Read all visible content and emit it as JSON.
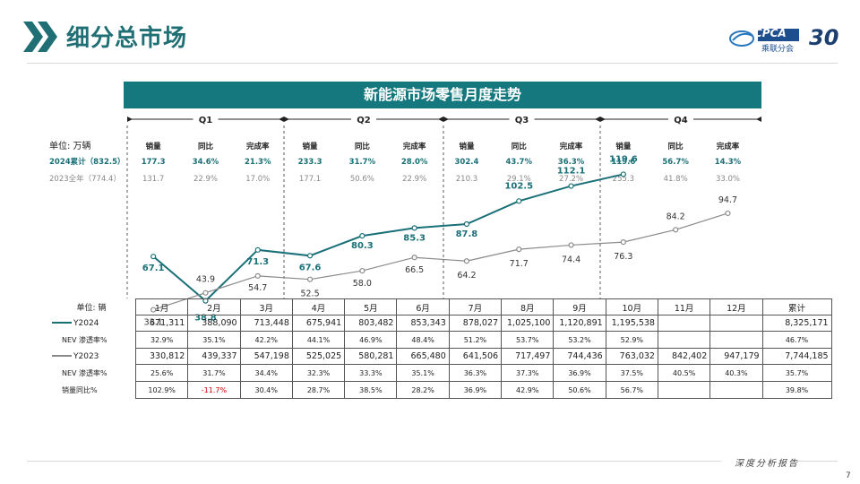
{
  "header": {
    "title": "细分总市场",
    "logo_text": "CPCA",
    "logo_sub": "乘联分会",
    "anniversary": "30"
  },
  "banner": {
    "title": "新能源市场零售月度走势"
  },
  "quarters": [
    "Q1",
    "Q2",
    "Q3",
    "Q4"
  ],
  "summary": {
    "unit_label": "单位: 万辆",
    "col_headers": [
      "销量",
      "同比",
      "完成率",
      "销量",
      "同比",
      "完成率",
      "销量",
      "同比",
      "完成率",
      "销量",
      "同比",
      "完成率"
    ],
    "rows": [
      {
        "label": "2024累计（832.5）",
        "values": [
          "177.3",
          "34.6%",
          "21.3%",
          "233.3",
          "31.7%",
          "28.0%",
          "302.4",
          "43.7%",
          "36.3%",
          "119.6",
          "56.7%",
          "14.3%"
        ]
      },
      {
        "label": "2023全年（774.4）",
        "values": [
          "131.7",
          "22.9%",
          "17.0%",
          "177.1",
          "50.6%",
          "22.9%",
          "210.3",
          "29.1%",
          "27.2%",
          "255.3",
          "41.8%",
          "33.0%"
        ]
      }
    ]
  },
  "chart_data": {
    "type": "line",
    "unit": "万辆",
    "x": [
      "1月",
      "2月",
      "3月",
      "4月",
      "5月",
      "6月",
      "7月",
      "8月",
      "9月",
      "10月",
      "11月",
      "12月"
    ],
    "series": [
      {
        "name": "Y2024",
        "color": "#1a7078",
        "values": [
          67.1,
          38.8,
          71.3,
          67.6,
          80.3,
          85.3,
          87.8,
          102.5,
          112.1,
          119.6,
          null,
          null
        ]
      },
      {
        "name": "Y2023",
        "color": "#8a8a8a",
        "values": [
          33.1,
          43.9,
          54.7,
          52.5,
          58.0,
          66.5,
          64.2,
          71.7,
          74.4,
          76.3,
          84.2,
          94.7
        ]
      }
    ],
    "labels_2024": [
      "67.1",
      "38.8",
      "71.3",
      "67.6",
      "80.3",
      "85.3",
      "87.8",
      "102.5",
      "112.1",
      "119.6"
    ],
    "labels_2023": [
      "33.1",
      "43.9",
      "54.7",
      "52.5",
      "58.0",
      "66.5",
      "64.2",
      "71.7",
      "74.4",
      "76.3",
      "84.2",
      "94.7"
    ],
    "ylim": [
      30,
      125
    ]
  },
  "table": {
    "unit_label": "单位: 辆",
    "months": [
      "1月",
      "2月",
      "3月",
      "4月",
      "5月",
      "6月",
      "7月",
      "8月",
      "9月",
      "10月",
      "11月",
      "12月"
    ],
    "total_label": "累计",
    "rows": [
      {
        "label": "Y2024",
        "values": [
          "671,311",
          "388,090",
          "713,448",
          "675,941",
          "803,482",
          "853,343",
          "878,027",
          "1,025,100",
          "1,120,891",
          "1,195,538",
          "",
          ""
        ],
        "total": "8,325,171"
      },
      {
        "label": "NEV 渗透率%",
        "values": [
          "32.9%",
          "35.1%",
          "42.2%",
          "44.1%",
          "46.9%",
          "48.4%",
          "51.2%",
          "53.7%",
          "53.2%",
          "52.9%",
          "",
          ""
        ],
        "total": "46.7%"
      },
      {
        "label": "Y2023",
        "values": [
          "330,812",
          "439,337",
          "547,198",
          "525,025",
          "580,281",
          "665,480",
          "641,506",
          "717,497",
          "744,436",
          "763,032",
          "842,402",
          "947,179"
        ],
        "total": "7,744,185"
      },
      {
        "label": "NEV 渗透率%",
        "values": [
          "25.6%",
          "31.7%",
          "34.4%",
          "32.3%",
          "33.3%",
          "35.1%",
          "36.3%",
          "37.3%",
          "36.9%",
          "37.5%",
          "40.5%",
          "40.3%"
        ],
        "total": "35.7%"
      },
      {
        "label": "销量同比%",
        "values": [
          "102.9%",
          "-11.7%",
          "30.4%",
          "28.7%",
          "38.5%",
          "28.2%",
          "36.9%",
          "42.9%",
          "50.6%",
          "56.7%",
          "",
          ""
        ],
        "total": "39.8%"
      }
    ]
  },
  "footer": {
    "text": "深度分析报告",
    "page": "7"
  },
  "colors": {
    "teal": "#14787e",
    "line2024": "#1a7078",
    "line2023": "#8a8a8a",
    "negative": "#d00000"
  }
}
